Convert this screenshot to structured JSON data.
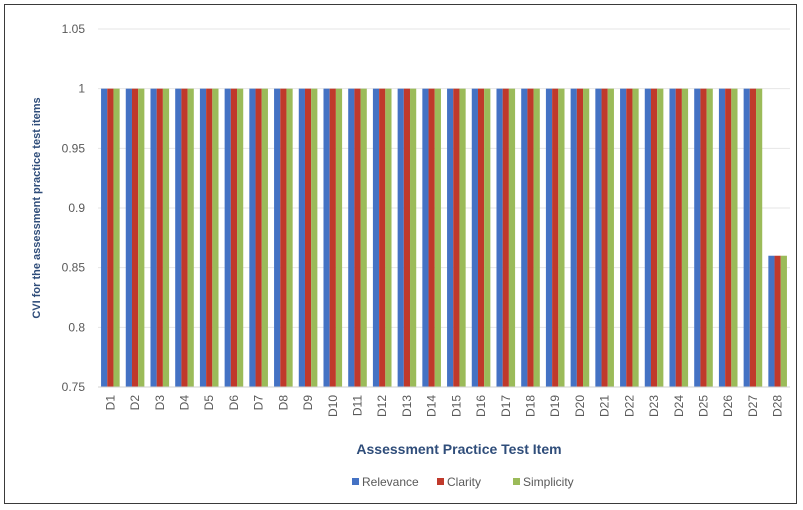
{
  "chart_data": {
    "type": "bar",
    "title": "",
    "xlabel": "Assessment Practice Test Item",
    "ylabel": "CVI for the assessment practice test items",
    "ylim": [
      0.75,
      1.05
    ],
    "yticks": [
      "0.75",
      "0.8",
      "0.85",
      "0.9",
      "0.95",
      "1",
      "1.05"
    ],
    "grid": true,
    "legend_position": "bottom",
    "categories": [
      "D1",
      "D2",
      "D3",
      "D4",
      "D5",
      "D6",
      "D7",
      "D8",
      "D9",
      "D10",
      "D11",
      "D12",
      "D13",
      "D14",
      "D15",
      "D16",
      "D17",
      "D18",
      "D19",
      "D20",
      "D21",
      "D22",
      "D23",
      "D24",
      "D25",
      "D26",
      "D27",
      "D28"
    ],
    "series": [
      {
        "name": "Relevance",
        "color": "#4472c4",
        "values": [
          1,
          1,
          1,
          1,
          1,
          1,
          1,
          1,
          1,
          1,
          1,
          1,
          1,
          1,
          1,
          1,
          1,
          1,
          1,
          1,
          1,
          1,
          1,
          1,
          1,
          1,
          1,
          0.86
        ]
      },
      {
        "name": "Clarity",
        "color": "#c0392b",
        "values": [
          1,
          1,
          1,
          1,
          1,
          1,
          1,
          1,
          1,
          1,
          1,
          1,
          1,
          1,
          1,
          1,
          1,
          1,
          1,
          1,
          1,
          1,
          1,
          1,
          1,
          1,
          1,
          0.86
        ]
      },
      {
        "name": "Simplicity",
        "color": "#9bbb59",
        "values": [
          1,
          1,
          1,
          1,
          1,
          1,
          1,
          1,
          1,
          1,
          1,
          1,
          1,
          1,
          1,
          1,
          1,
          1,
          1,
          1,
          1,
          1,
          1,
          1,
          1,
          1,
          1,
          0.86
        ]
      }
    ]
  }
}
